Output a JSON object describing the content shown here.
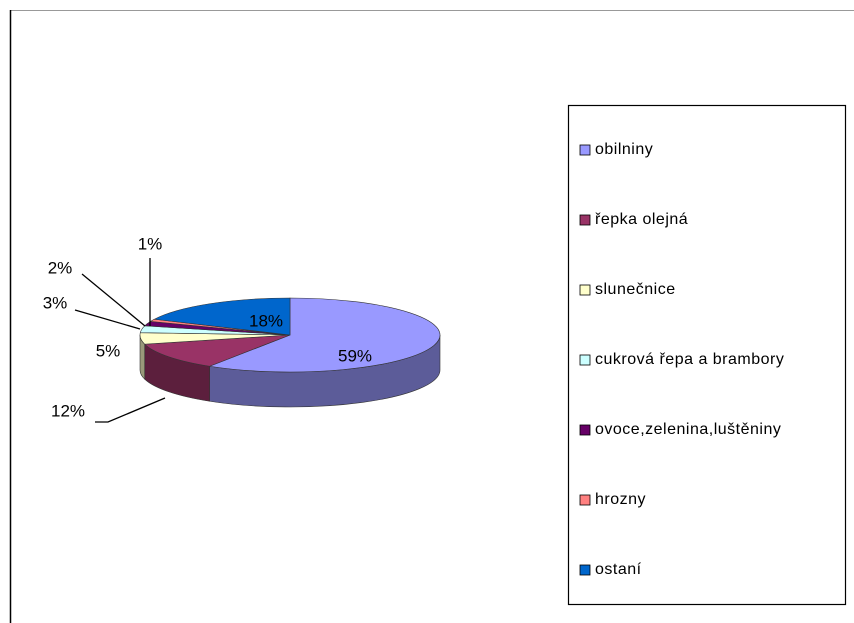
{
  "chart_data": {
    "type": "pie3d",
    "categories": [
      "obilniny",
      "řepka olejná",
      "slunečnice",
      "cukrová řepa a brambory",
      "ovoce,zelenina,luštěniny",
      "hrozny",
      "ostaní"
    ],
    "values": [
      59,
      12,
      5,
      3,
      2,
      1,
      18
    ],
    "value_labels": [
      "59%",
      "12%",
      "5%",
      "3%",
      "2%",
      "1%",
      "18%"
    ],
    "colors": [
      "#9999ff",
      "#993366",
      "#ffffcc",
      "#ccffff",
      "#660066",
      "#ff8080",
      "#0066cc"
    ],
    "legend": "right"
  }
}
